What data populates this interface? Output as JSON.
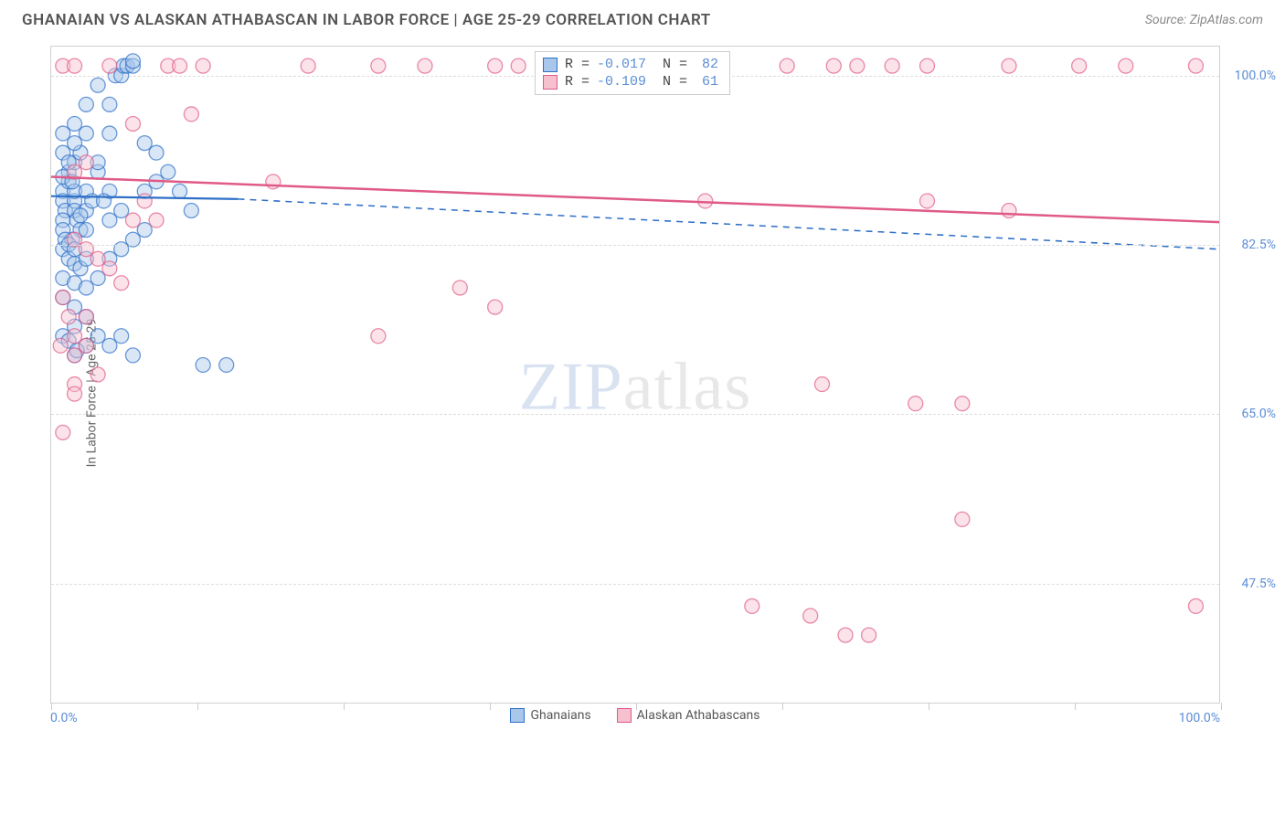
{
  "header": {
    "title": "GHANAIAN VS ALASKAN ATHABASCAN IN LABOR FORCE | AGE 25-29 CORRELATION CHART",
    "source_prefix": "Source: ",
    "source_name": "ZipAtlas.com"
  },
  "chart": {
    "type": "scatter",
    "ylabel": "In Labor Force | Age 25-29",
    "xlim": [
      0,
      100
    ],
    "ylim": [
      35,
      103
    ],
    "x_ticks": [
      0,
      12.5,
      25,
      37.5,
      50,
      62.5,
      75,
      87.5,
      100
    ],
    "x_tick_labels": {
      "0": "0.0%",
      "100": "100.0%"
    },
    "y_gridlines": [
      47.5,
      65.0,
      82.5,
      100.0
    ],
    "y_tick_labels": {
      "47.5": "47.5%",
      "65.0": "65.0%",
      "82.5": "82.5%",
      "100.0": "100.0%"
    },
    "background_color": "#ffffff",
    "grid_color": "#dddddd",
    "border_color": "#d0d0d0",
    "marker_radius": 8,
    "marker_opacity": 0.45,
    "marker_stroke_width": 1.3,
    "watermark": {
      "zip": "ZIP",
      "atlas": "atlas"
    },
    "legend_top": [
      {
        "swatch_fill": "#a9c7eb",
        "swatch_stroke": "#2e6fc7",
        "r_label": "R =",
        "r_value": "-0.017",
        "n_label": "N =",
        "n_value": "82"
      },
      {
        "swatch_fill": "#f6c0cf",
        "swatch_stroke": "#e05a87",
        "r_label": "R =",
        "r_value": "-0.109",
        "n_label": "N =",
        "n_value": "61"
      }
    ],
    "legend_bottom": [
      {
        "label": "Ghanaians",
        "swatch_fill": "#a9c7eb",
        "swatch_stroke": "#2e6fc7"
      },
      {
        "label": "Alaskan Athabascans",
        "swatch_fill": "#f6c0cf",
        "swatch_stroke": "#e05a87"
      }
    ],
    "series": [
      {
        "name": "Ghanaians",
        "color_fill": "#a9c7eb",
        "color_stroke": "#2e6fc7",
        "trend": {
          "x1": 0,
          "y1": 87.5,
          "x2": 16,
          "y2": 87.2,
          "dash_x2": 100,
          "dash_y2": 82.0,
          "stroke": "#2e6fc7",
          "width": 2.2
        },
        "points": [
          [
            1,
            88
          ],
          [
            1,
            87
          ],
          [
            1.2,
            86
          ],
          [
            1.5,
            89
          ],
          [
            1.5,
            90
          ],
          [
            1,
            85
          ],
          [
            2,
            87
          ],
          [
            2,
            86
          ],
          [
            2,
            88
          ],
          [
            2.2,
            85
          ],
          [
            2.5,
            84
          ],
          [
            1,
            84
          ],
          [
            1.8,
            83
          ],
          [
            3,
            86
          ],
          [
            3,
            88
          ],
          [
            3.5,
            87
          ],
          [
            2,
            91
          ],
          [
            2.5,
            92
          ],
          [
            2,
            93
          ],
          [
            4,
            90
          ],
          [
            4,
            91
          ],
          [
            3,
            94
          ],
          [
            5,
            94
          ],
          [
            5,
            97
          ],
          [
            5.5,
            100
          ],
          [
            6,
            100
          ],
          [
            6.2,
            101
          ],
          [
            6.5,
            101
          ],
          [
            7,
            101
          ],
          [
            7,
            101.5
          ],
          [
            4,
            99
          ],
          [
            3,
            97
          ],
          [
            2,
            95
          ],
          [
            1,
            94
          ],
          [
            1,
            92
          ],
          [
            1.5,
            91
          ],
          [
            1,
            89.5
          ],
          [
            1.8,
            89
          ],
          [
            2.5,
            85.5
          ],
          [
            3,
            84
          ],
          [
            1,
            82
          ],
          [
            1.5,
            81
          ],
          [
            2,
            80.5
          ],
          [
            2.5,
            80
          ],
          [
            1,
            79
          ],
          [
            2,
            78.5
          ],
          [
            3,
            78
          ],
          [
            4,
            79
          ],
          [
            5,
            81
          ],
          [
            6,
            82
          ],
          [
            7,
            83
          ],
          [
            8,
            84
          ],
          [
            8,
            88
          ],
          [
            9,
            89
          ],
          [
            6,
            86
          ],
          [
            5,
            85
          ],
          [
            5,
            88
          ],
          [
            4.5,
            87
          ],
          [
            1.2,
            83
          ],
          [
            1.5,
            82.5
          ],
          [
            2,
            82
          ],
          [
            3,
            81
          ],
          [
            1,
            77
          ],
          [
            2,
            76
          ],
          [
            3,
            75
          ],
          [
            2,
            74
          ],
          [
            4,
            73
          ],
          [
            3,
            72
          ],
          [
            2,
            71
          ],
          [
            5,
            72
          ],
          [
            6,
            73
          ],
          [
            7,
            71
          ],
          [
            1,
            73
          ],
          [
            1.5,
            72.5
          ],
          [
            2.2,
            71.5
          ],
          [
            13,
            70
          ],
          [
            15,
            70
          ],
          [
            10,
            90
          ],
          [
            11,
            88
          ],
          [
            12,
            86
          ],
          [
            8,
            93
          ],
          [
            9,
            92
          ]
        ]
      },
      {
        "name": "Alaskan Athabascans",
        "color_fill": "#f6c0cf",
        "color_stroke": "#e05a87",
        "trend": {
          "x1": 0,
          "y1": 89.5,
          "x2": 100,
          "y2": 84.8,
          "stroke": "#e05a87",
          "width": 2.5
        },
        "points": [
          [
            1,
            101
          ],
          [
            2,
            101
          ],
          [
            5,
            101
          ],
          [
            10,
            101
          ],
          [
            11,
            101
          ],
          [
            13,
            101
          ],
          [
            22,
            101
          ],
          [
            28,
            101
          ],
          [
            32,
            101
          ],
          [
            38,
            101
          ],
          [
            40,
            101
          ],
          [
            47,
            101
          ],
          [
            55,
            101
          ],
          [
            63,
            101
          ],
          [
            67,
            101
          ],
          [
            69,
            101
          ],
          [
            72,
            101
          ],
          [
            75,
            101
          ],
          [
            82,
            101
          ],
          [
            88,
            101
          ],
          [
            92,
            101
          ],
          [
            98,
            101
          ],
          [
            12,
            96
          ],
          [
            7,
            95
          ],
          [
            19,
            89
          ],
          [
            2,
            83
          ],
          [
            3,
            82
          ],
          [
            4,
            81
          ],
          [
            5,
            80
          ],
          [
            6,
            78.5
          ],
          [
            35,
            78
          ],
          [
            3,
            72
          ],
          [
            2,
            71
          ],
          [
            38,
            76
          ],
          [
            28,
            73
          ],
          [
            56,
            87
          ],
          [
            75,
            87
          ],
          [
            66,
            68
          ],
          [
            74,
            66
          ],
          [
            78,
            66
          ],
          [
            82,
            86
          ],
          [
            65,
            44
          ],
          [
            68,
            42
          ],
          [
            70,
            42
          ],
          [
            98,
            45
          ],
          [
            78,
            54
          ],
          [
            60,
            45
          ],
          [
            1,
            63
          ],
          [
            2,
            68
          ],
          [
            4,
            69
          ],
          [
            3,
            75
          ],
          [
            2,
            73
          ],
          [
            7,
            85
          ],
          [
            8,
            87
          ],
          [
            9,
            85
          ],
          [
            2,
            90
          ],
          [
            3,
            91
          ],
          [
            1,
            77
          ],
          [
            1.5,
            75
          ],
          [
            0.8,
            72
          ],
          [
            2,
            67
          ]
        ]
      }
    ]
  }
}
